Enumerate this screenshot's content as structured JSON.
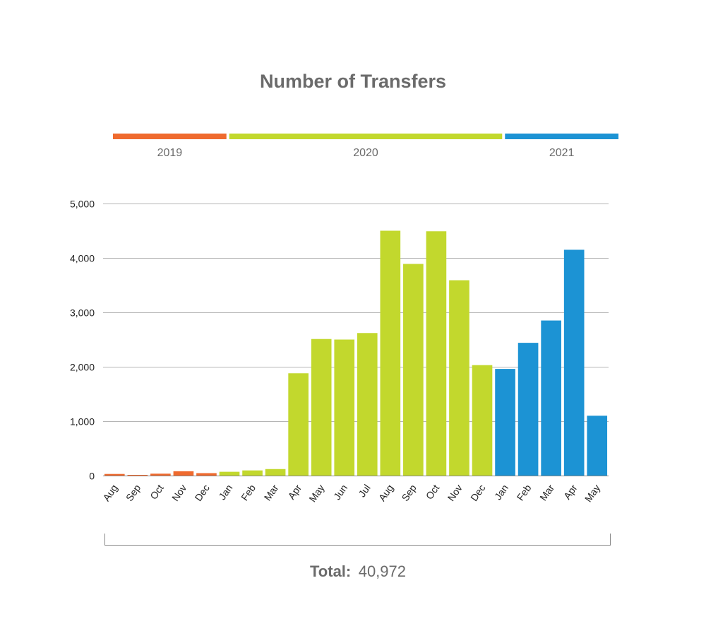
{
  "chart_data": {
    "type": "bar",
    "title": "Number of Transfers",
    "xlabel": "",
    "ylabel": "",
    "ylim": [
      0,
      5000
    ],
    "yticks": [
      "0",
      "1,000",
      "2,000",
      "3,000",
      "4,000",
      "5,000"
    ],
    "ytick_values": [
      0,
      1000,
      2000,
      3000,
      4000,
      5000
    ],
    "grid": "horizontal",
    "categories": [
      "Aug",
      "Sep",
      "Oct",
      "Nov",
      "Dec",
      "Jan",
      "Feb",
      "Mar",
      "Apr",
      "May",
      "Jun",
      "Jul",
      "Aug",
      "Sep",
      "Oct",
      "Nov",
      "Dec",
      "Jan",
      "Feb",
      "Mar",
      "Apr",
      "May"
    ],
    "values": [
      30,
      10,
      35,
      80,
      45,
      70,
      95,
      120,
      1880,
      2510,
      2500,
      2620,
      4500,
      3890,
      4490,
      3590,
      2030,
      1960,
      2440,
      2850,
      4150,
      1100
    ],
    "groups": [
      {
        "label": "2019",
        "start": 0,
        "end": 4,
        "color": "#ef6a2e"
      },
      {
        "label": "2020",
        "start": 5,
        "end": 16,
        "color": "#c2d82d"
      },
      {
        "label": "2021",
        "start": 17,
        "end": 21,
        "color": "#1c93d4"
      }
    ],
    "total": {
      "label": "Total:",
      "value": "40,972"
    }
  }
}
